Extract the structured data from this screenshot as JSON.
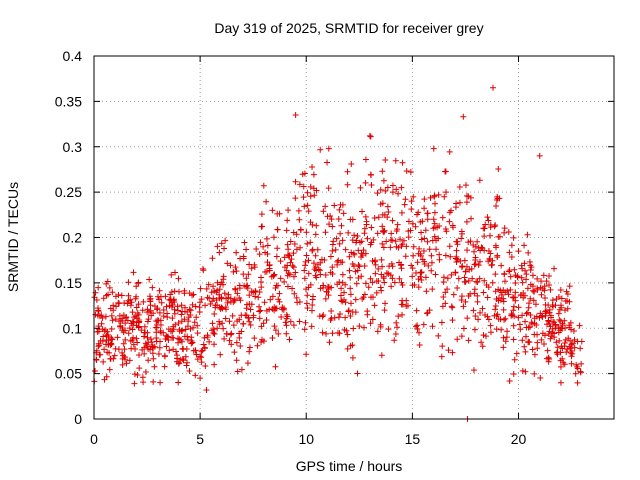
{
  "chart_data": {
    "type": "scatter",
    "title": "Day 319 of 2025, SRMTID for receiver grey",
    "xlabel": "GPS time / hours",
    "ylabel": "SRMTID / TECUs",
    "xlim": [
      0,
      24.5
    ],
    "ylim": [
      0,
      0.4
    ],
    "xticks": [
      0,
      5,
      10,
      15,
      20
    ],
    "xtick_labels": [
      "0",
      "5",
      "10",
      "15",
      "20"
    ],
    "yticks": [
      0,
      0.05,
      0.1,
      0.15,
      0.2,
      0.25,
      0.3,
      0.35,
      0.4
    ],
    "ytick_labels": [
      "0",
      "0.05",
      "0.1",
      "0.15",
      "0.2",
      "0.25",
      "0.3",
      "0.35",
      "0.4"
    ],
    "grid": true,
    "marker": "+",
    "color": "#e00000",
    "x_range_data": [
      0,
      23
    ],
    "trend": {
      "hours": [
        0,
        2,
        4,
        5,
        6,
        8,
        9,
        10,
        12,
        13,
        14,
        16,
        18,
        19,
        20,
        21,
        22,
        23
      ],
      "median": [
        0.1,
        0.1,
        0.1,
        0.1,
        0.12,
        0.14,
        0.15,
        0.18,
        0.16,
        0.19,
        0.17,
        0.19,
        0.16,
        0.17,
        0.13,
        0.12,
        0.1,
        0.07
      ]
    },
    "notable_points": [
      {
        "x": 18.8,
        "y": 0.365
      },
      {
        "x": 9.5,
        "y": 0.335
      },
      {
        "x": 17.4,
        "y": 0.333
      },
      {
        "x": 13.0,
        "y": 0.312
      },
      {
        "x": 21.0,
        "y": 0.29
      },
      {
        "x": 8.0,
        "y": 0.257
      },
      {
        "x": 5.0,
        "y": 0.045
      },
      {
        "x": 5.3,
        "y": 0.032
      },
      {
        "x": 22.0,
        "y": 0.04
      },
      {
        "x": 17.6,
        "y": 0.0
      }
    ]
  }
}
